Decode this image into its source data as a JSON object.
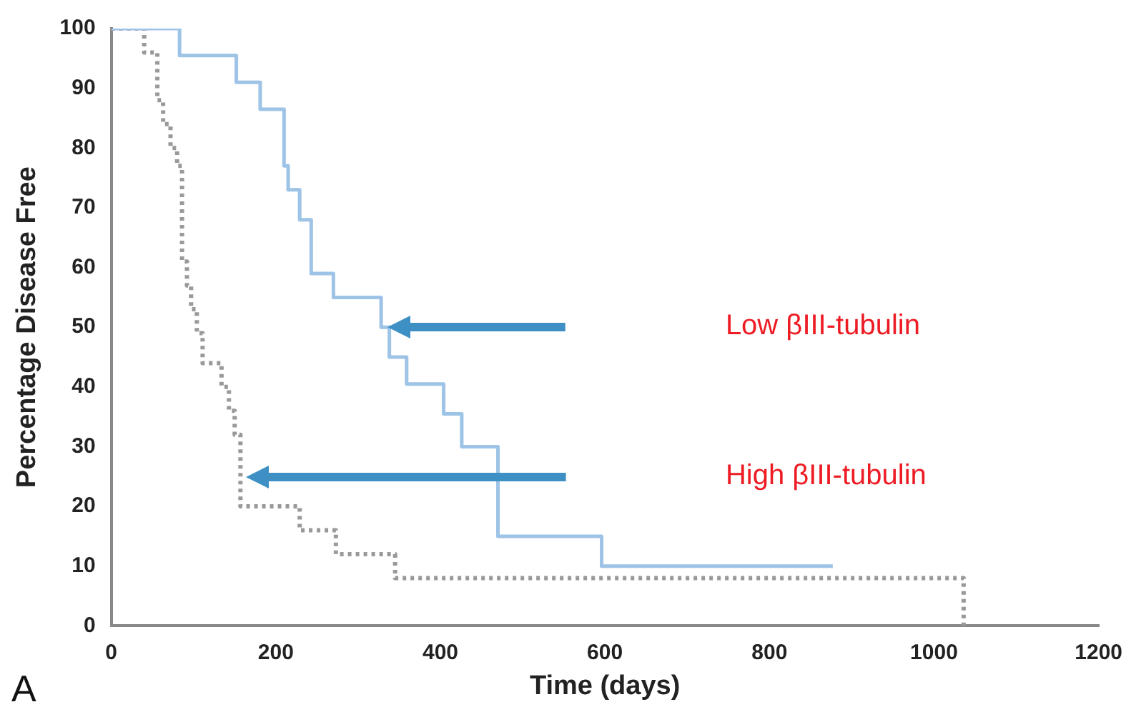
{
  "chart_data": {
    "type": "step",
    "xlabel": "Time (days)",
    "ylabel": "Percentage Disease Free",
    "xlim": [
      0,
      1200
    ],
    "xticks": [
      0,
      200,
      400,
      600,
      800,
      1000,
      1200
    ],
    "ylim": [
      0,
      100
    ],
    "yticks": [
      0,
      10,
      20,
      30,
      40,
      50,
      60,
      70,
      80,
      90,
      100
    ],
    "grid": false,
    "legend": false,
    "marker": "none",
    "series": [
      {
        "color": "#9dc3e6",
        "line_style": "solid",
        "x": [
          0,
          83,
          152,
          181,
          210,
          215,
          229,
          243,
          270,
          328,
          338,
          359,
          404,
          426,
          470,
          596,
          877
        ],
        "values": [
          100,
          95.5,
          91,
          86.5,
          77,
          73,
          68,
          59,
          55,
          50,
          45,
          40.5,
          35.5,
          30,
          15,
          10,
          10
        ]
      },
      {
        "color": "#999999",
        "line_style": "dotted",
        "x": [
          0,
          40,
          56,
          63,
          72,
          80,
          86,
          92,
          97,
          104,
          111,
          134,
          143,
          150,
          157,
          229,
          273,
          345,
          1036
        ],
        "values": [
          100,
          96,
          88,
          84,
          80,
          77,
          61,
          57,
          53,
          49,
          44,
          40,
          36,
          32,
          20,
          16,
          12,
          8,
          0
        ]
      }
    ],
    "annotations": [
      "Low βIII-tubulin",
      "High βIII-tubulin",
      "A"
    ]
  }
}
